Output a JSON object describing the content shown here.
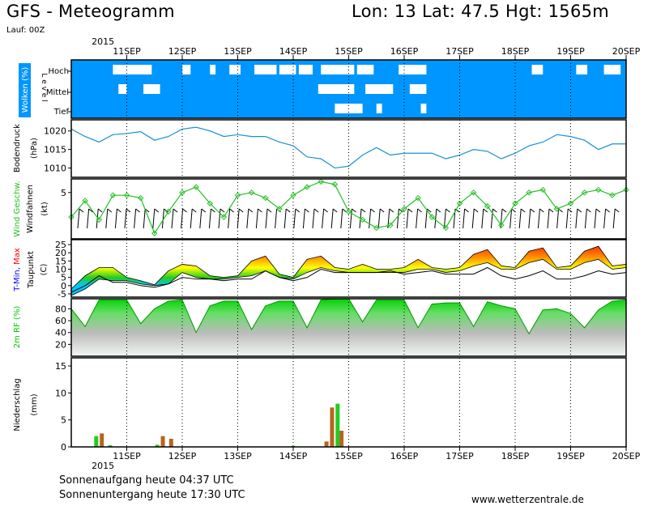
{
  "header": {
    "title": "GFS - Meteogramm",
    "location": "Lon: 13 Lat: 47.5 Hgt: 1565m",
    "run": "Lauf: 00Z"
  },
  "footer": {
    "sunrise": "Sonnenaufgang heute 04:37 UTC",
    "sunset": "Sonnenuntergang heute 17:30 UTC",
    "site": "www.wetterzentrale.de"
  },
  "colors": {
    "cloud_blue": "#0096ff",
    "pressure_line": "#1a8fd6",
    "wind_green": "#22c022",
    "tmin_blue": "#0000ff",
    "tmax_red": "#ff0000",
    "rh_green": "#00c800",
    "precip_green": "#22cc22",
    "precip_brown": "#b8641e"
  },
  "chart_data": [
    {
      "type": "heatmap",
      "panel": "clouds",
      "ylabel": "Wolken (%)",
      "ylabel2": "L e v e l",
      "levels": [
        "Hoch",
        "Mittel",
        "Tief"
      ],
      "x": [
        "11SEP",
        "12SEP",
        "13SEP",
        "14SEP",
        "15SEP",
        "16SEP",
        "17SEP",
        "18SEP",
        "19SEP",
        "20SEP"
      ],
      "year": "2015",
      "note": "predominantly overcast; clear gaps at high/mid/low levels",
      "clear_gaps": [
        {
          "level": "Hoch",
          "day_from": 10.75,
          "day_to": 11.45
        },
        {
          "level": "Hoch",
          "day_from": 12.0,
          "day_to": 12.15
        },
        {
          "level": "Hoch",
          "day_from": 12.5,
          "day_to": 12.6
        },
        {
          "level": "Hoch",
          "day_from": 12.85,
          "day_to": 13.05
        },
        {
          "level": "Hoch",
          "day_from": 13.3,
          "day_to": 13.7
        },
        {
          "level": "Hoch",
          "day_from": 13.75,
          "day_to": 14.05
        },
        {
          "level": "Hoch",
          "day_from": 14.1,
          "day_to": 14.35
        },
        {
          "level": "Hoch",
          "day_from": 14.5,
          "day_to": 15.1
        },
        {
          "level": "Hoch",
          "day_from": 15.15,
          "day_to": 15.45
        },
        {
          "level": "Hoch",
          "day_from": 15.9,
          "day_to": 16.4
        },
        {
          "level": "Hoch",
          "day_from": 18.3,
          "day_to": 18.5
        },
        {
          "level": "Hoch",
          "day_from": 19.1,
          "day_to": 19.3
        },
        {
          "level": "Hoch",
          "day_from": 19.6,
          "day_to": 19.9
        },
        {
          "level": "Mittel",
          "day_from": 10.85,
          "day_to": 11.0
        },
        {
          "level": "Mittel",
          "day_from": 11.3,
          "day_to": 11.6
        },
        {
          "level": "Mittel",
          "day_from": 14.45,
          "day_to": 15.1
        },
        {
          "level": "Mittel",
          "day_from": 15.3,
          "day_to": 15.8
        },
        {
          "level": "Mittel",
          "day_from": 16.1,
          "day_to": 16.4
        },
        {
          "level": "Tief",
          "day_from": 14.75,
          "day_to": 15.25
        },
        {
          "level": "Tief",
          "day_from": 15.5,
          "day_to": 15.6
        },
        {
          "level": "Tief",
          "day_from": 16.3,
          "day_to": 16.4
        }
      ]
    },
    {
      "type": "line",
      "panel": "pressure",
      "ylabel": "Bodendruck",
      "unit": "(hPa)",
      "yticks": [
        1010,
        1015,
        1020
      ],
      "ylim": [
        1007.5,
        1023
      ],
      "x": [
        10,
        10.25,
        10.5,
        10.75,
        11,
        11.25,
        11.5,
        11.75,
        12,
        12.25,
        12.5,
        12.75,
        13,
        13.25,
        13.5,
        13.75,
        14,
        14.25,
        14.5,
        14.75,
        15,
        15.25,
        15.5,
        15.75,
        16,
        16.25,
        16.5,
        16.75,
        17,
        17.25,
        17.5,
        17.75,
        18,
        18.25,
        18.5,
        18.75,
        19,
        19.25,
        19.5,
        19.75,
        20
      ],
      "values": [
        1020.5,
        1018.5,
        1017,
        1019,
        1019.3,
        1019.8,
        1017.5,
        1018.5,
        1020.5,
        1021,
        1020,
        1018.5,
        1019,
        1018.5,
        1018.5,
        1017,
        1016,
        1013,
        1012.5,
        1010,
        1010.5,
        1013.5,
        1015.5,
        1013.5,
        1014,
        1014,
        1014,
        1012.5,
        1013.5,
        1015,
        1014.5,
        1012.5,
        1014,
        1016,
        1017,
        1019,
        1018.5,
        1017.5,
        1015,
        1016.5,
        1016.5
      ]
    },
    {
      "type": "line",
      "panel": "wind",
      "ylabel": "Wind Geschw.",
      "ylabel2": "Windfahnen",
      "unit": "(kt)",
      "yticks": [
        5
      ],
      "ylim": [
        -3.5,
        7.5
      ],
      "x": [
        10,
        10.25,
        10.5,
        10.75,
        11,
        11.25,
        11.5,
        11.75,
        12,
        12.25,
        12.5,
        12.75,
        13,
        13.25,
        13.5,
        13.75,
        14,
        14.25,
        14.5,
        14.75,
        15,
        15.25,
        15.5,
        15.75,
        16,
        16.25,
        16.5,
        16.75,
        17,
        17.25,
        17.5,
        17.75,
        18,
        18.25,
        18.5,
        18.75,
        19,
        19.25,
        19.5,
        19.75,
        20
      ],
      "values": [
        0.5,
        3.5,
        0,
        4.5,
        4.5,
        4,
        -2.5,
        1.5,
        5,
        6,
        3,
        0.5,
        4.5,
        5,
        4,
        2,
        4.5,
        6,
        7,
        6.5,
        1.5,
        0,
        -1.5,
        -1,
        2,
        4,
        0.5,
        -1.5,
        3,
        5,
        2.5,
        -1,
        3,
        5,
        5.5,
        2,
        3,
        5,
        5.5,
        4.5,
        5.5
      ]
    },
    {
      "type": "area",
      "panel": "temperature",
      "ylabel": "T-Min, Max",
      "ylabel2": "Taupunkt",
      "unit": "(C)",
      "yticks": [
        -5,
        0,
        5,
        10,
        15,
        20,
        25
      ],
      "ylim": [
        -7,
        28
      ],
      "x": [
        10,
        10.25,
        10.5,
        10.75,
        11,
        11.25,
        11.5,
        11.75,
        12,
        12.25,
        12.5,
        12.75,
        13,
        13.25,
        13.5,
        13.75,
        14,
        14.25,
        14.5,
        14.75,
        15,
        15.25,
        15.5,
        15.75,
        16,
        16.25,
        16.5,
        16.75,
        17,
        17.25,
        17.5,
        17.75,
        18,
        18.25,
        18.5,
        18.75,
        19,
        19.25,
        19.5,
        19.75,
        20
      ],
      "series": [
        {
          "name": "T-Max",
          "values": [
            -2,
            6,
            11,
            11,
            5,
            3,
            0.5,
            9,
            13,
            12,
            6,
            5,
            6,
            15,
            18,
            7,
            5,
            16,
            18,
            11,
            10,
            13,
            10,
            10,
            11,
            16,
            11,
            10,
            11,
            19,
            22,
            12,
            11,
            21,
            23,
            11,
            12,
            21,
            24,
            12,
            13
          ]
        },
        {
          "name": "T-Min",
          "values": [
            -6,
            -2,
            4,
            3,
            3,
            1,
            0,
            1,
            8,
            5,
            4,
            4,
            5,
            6,
            9,
            5,
            4,
            8,
            11,
            9,
            8,
            8,
            8,
            8,
            8,
            10,
            10,
            8,
            9,
            12,
            14,
            10,
            10,
            14,
            16,
            10,
            10,
            14,
            16,
            10,
            11
          ]
        },
        {
          "name": "Taupunkt",
          "values": [
            -4,
            0,
            6,
            2,
            2,
            0,
            -1,
            1,
            5,
            4,
            4,
            3,
            4,
            4,
            9,
            5,
            3,
            5,
            10,
            8,
            8,
            8,
            8,
            9,
            7,
            8,
            9,
            7,
            7,
            7,
            11,
            6,
            4,
            6,
            9,
            4,
            4,
            6,
            9,
            7,
            8
          ]
        }
      ]
    },
    {
      "type": "area",
      "panel": "humidity",
      "ylabel": "2m RF (%)",
      "yticks": [
        20,
        40,
        60,
        80
      ],
      "ylim": [
        0,
        97
      ],
      "x": [
        10,
        10.25,
        10.5,
        10.75,
        11,
        11.25,
        11.5,
        11.75,
        12,
        12.25,
        12.5,
        12.75,
        13,
        13.25,
        13.5,
        13.75,
        14,
        14.25,
        14.5,
        14.75,
        15,
        15.25,
        15.5,
        15.75,
        16,
        16.25,
        16.5,
        16.75,
        17,
        17.25,
        17.5,
        17.75,
        18,
        18.25,
        18.5,
        18.75,
        19,
        19.25,
        19.5,
        19.75,
        20
      ],
      "values": [
        80,
        50,
        95,
        95,
        95,
        55,
        80,
        93,
        95,
        40,
        85,
        93,
        93,
        45,
        85,
        93,
        93,
        48,
        95,
        97,
        97,
        58,
        95,
        95,
        95,
        48,
        88,
        90,
        90,
        50,
        92,
        85,
        80,
        38,
        78,
        80,
        72,
        48,
        78,
        93,
        95
      ]
    },
    {
      "type": "bar",
      "panel": "precipitation",
      "ylabel": "Niederschlag",
      "unit": "(mm)",
      "yticks": [
        0,
        5,
        10,
        15
      ],
      "ylim": [
        0,
        16.5
      ],
      "bars": [
        {
          "x": 10.45,
          "series": "green",
          "value": 2.0
        },
        {
          "x": 10.55,
          "series": "brown",
          "value": 2.5
        },
        {
          "x": 10.7,
          "series": "green",
          "value": 0.3
        },
        {
          "x": 11.55,
          "series": "green",
          "value": 0.4
        },
        {
          "x": 11.65,
          "series": "brown",
          "value": 2.0
        },
        {
          "x": 11.8,
          "series": "brown",
          "value": 1.5
        },
        {
          "x": 14.0,
          "series": "green",
          "value": 0.2
        },
        {
          "x": 14.6,
          "series": "brown",
          "value": 1.0
        },
        {
          "x": 14.7,
          "series": "brown",
          "value": 7.3
        },
        {
          "x": 14.8,
          "series": "green",
          "value": 8.0
        },
        {
          "x": 14.87,
          "series": "brown",
          "value": 3.0
        }
      ]
    }
  ]
}
